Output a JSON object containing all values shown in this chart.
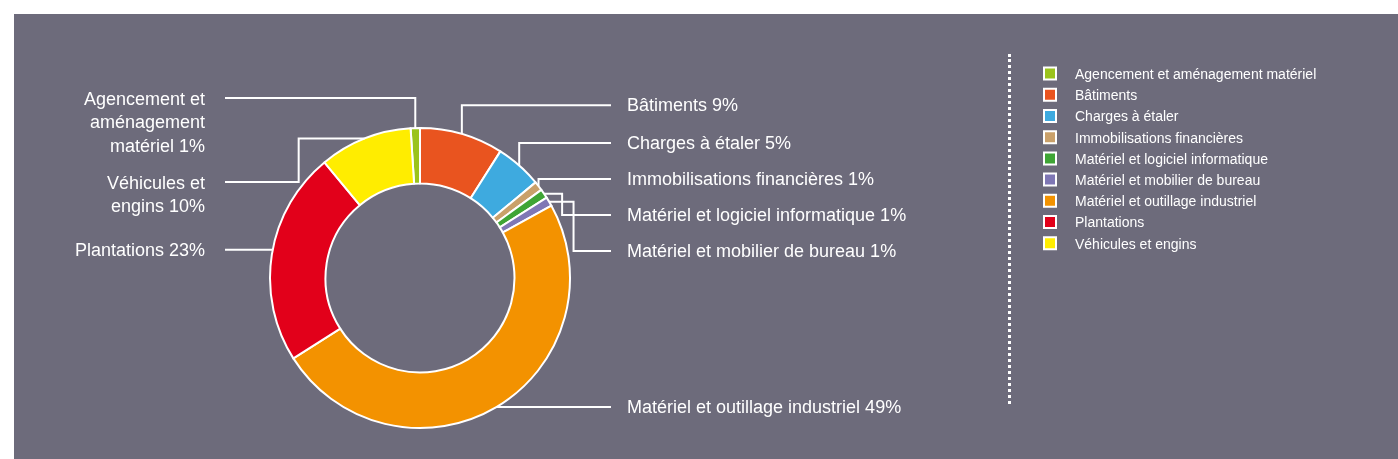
{
  "chart_data": {
    "type": "donut",
    "categories": [
      "Agencement et aménagement matériel",
      "Bâtiments",
      "Charges à étaler",
      "Immobilisations financières",
      "Matériel et logiciel informatique",
      "Matériel et mobilier de bureau",
      "Matériel et outillage industriel",
      "Plantations",
      "Véhicules et engins"
    ],
    "values": [
      1,
      9,
      5,
      1,
      1,
      1,
      49,
      23,
      10
    ],
    "colors": [
      "#9bc31c",
      "#e9541f",
      "#3eaadf",
      "#c9a06a",
      "#3fa535",
      "#7f77b5",
      "#f39200",
      "#e2001a",
      "#ffed00"
    ],
    "value_labels": [
      "1%",
      "9%",
      "5%",
      "1%",
      "1%",
      "1%",
      "49%",
      "23%",
      "10%"
    ],
    "legend": "right"
  }
}
